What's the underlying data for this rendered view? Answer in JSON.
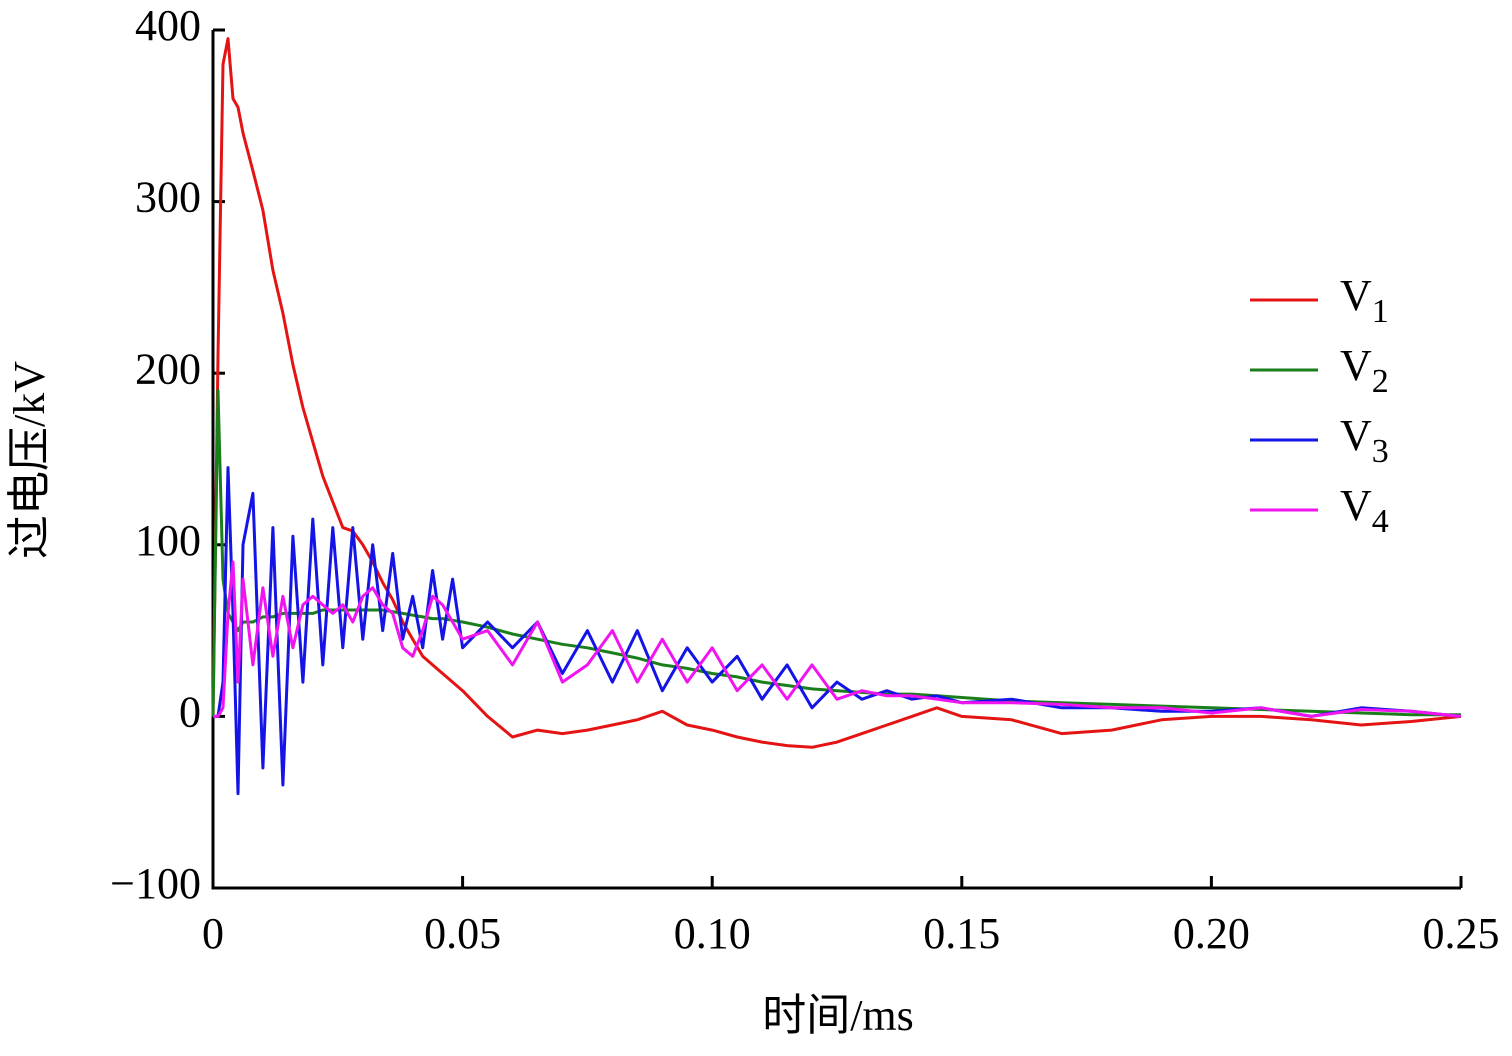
{
  "chart_data": {
    "type": "line",
    "xlabel": "时间/ms",
    "ylabel": "过电压/kV",
    "x": [
      0,
      0.001,
      0.002,
      0.003,
      0.004,
      0.005,
      0.006,
      0.008,
      0.01,
      0.012,
      0.014,
      0.016,
      0.018,
      0.02,
      0.022,
      0.024,
      0.026,
      0.028,
      0.03,
      0.032,
      0.034,
      0.036,
      0.038,
      0.04,
      0.042,
      0.044,
      0.046,
      0.048,
      0.05,
      0.055,
      0.06,
      0.065,
      0.07,
      0.075,
      0.08,
      0.085,
      0.09,
      0.095,
      0.1,
      0.105,
      0.11,
      0.115,
      0.12,
      0.125,
      0.13,
      0.135,
      0.14,
      0.145,
      0.15,
      0.16,
      0.17,
      0.18,
      0.19,
      0.2,
      0.21,
      0.22,
      0.23,
      0.24,
      0.25
    ],
    "series": [
      {
        "name": "V1",
        "color": "#e41414",
        "values": [
          0,
          210,
          380,
          395,
          360,
          355,
          340,
          318,
          295,
          260,
          235,
          205,
          180,
          160,
          140,
          125,
          110,
          108,
          100,
          90,
          78,
          68,
          55,
          45,
          35,
          30,
          25,
          20,
          15,
          0,
          -12,
          -8,
          -10,
          -8,
          -5,
          -2,
          3,
          -5,
          -8,
          -12,
          -15,
          -17,
          -18,
          -15,
          -10,
          -5,
          0,
          5,
          0,
          -2,
          -10,
          -8,
          -2,
          0,
          0,
          -2,
          -5,
          -3,
          0
        ]
      },
      {
        "name": "V2",
        "color": "#1a7f1a",
        "values": [
          0,
          190,
          80,
          60,
          55,
          50,
          55,
          55,
          58,
          58,
          60,
          60,
          60,
          60,
          62,
          62,
          62,
          62,
          62,
          62,
          62,
          61,
          60,
          59,
          58,
          57,
          57,
          56,
          55,
          52,
          48,
          45,
          42,
          40,
          37,
          34,
          30,
          28,
          25,
          23,
          20,
          18,
          16,
          15,
          14,
          13,
          13,
          12,
          11,
          9,
          8,
          7,
          6,
          5,
          4,
          3,
          2,
          1,
          1
        ]
      },
      {
        "name": "V3",
        "color": "#1414e6",
        "values": [
          0,
          0,
          20,
          145,
          60,
          -45,
          100,
          130,
          -30,
          110,
          -40,
          105,
          20,
          115,
          30,
          110,
          40,
          110,
          45,
          100,
          50,
          95,
          45,
          70,
          40,
          85,
          45,
          80,
          40,
          55,
          40,
          55,
          25,
          50,
          20,
          50,
          15,
          40,
          20,
          35,
          10,
          30,
          5,
          20,
          10,
          15,
          10,
          12,
          8,
          10,
          5,
          5,
          3,
          3,
          5,
          0,
          5,
          3,
          0
        ]
      },
      {
        "name": "V4",
        "color": "#f014f0",
        "values": [
          0,
          0,
          5,
          60,
          90,
          20,
          80,
          30,
          75,
          35,
          70,
          40,
          65,
          70,
          65,
          60,
          65,
          55,
          70,
          75,
          65,
          60,
          40,
          35,
          50,
          70,
          65,
          55,
          45,
          50,
          30,
          55,
          20,
          30,
          50,
          20,
          45,
          20,
          40,
          15,
          30,
          10,
          30,
          10,
          15,
          12,
          12,
          10,
          8,
          8,
          7,
          5,
          5,
          2,
          5,
          0,
          4,
          3,
          0
        ]
      }
    ],
    "xlim": [
      0,
      0.25
    ],
    "xticks": [
      0,
      0.05,
      {
        "value": 0.1,
        "label": "0.10"
      },
      0.15,
      {
        "value": 0.2,
        "label": "0.20"
      },
      0.25
    ],
    "ylim": [
      -100,
      400
    ],
    "yticks": [
      {
        "value": -100,
        "label": "−100"
      },
      0,
      100,
      200,
      300,
      400
    ],
    "legend": "right"
  }
}
